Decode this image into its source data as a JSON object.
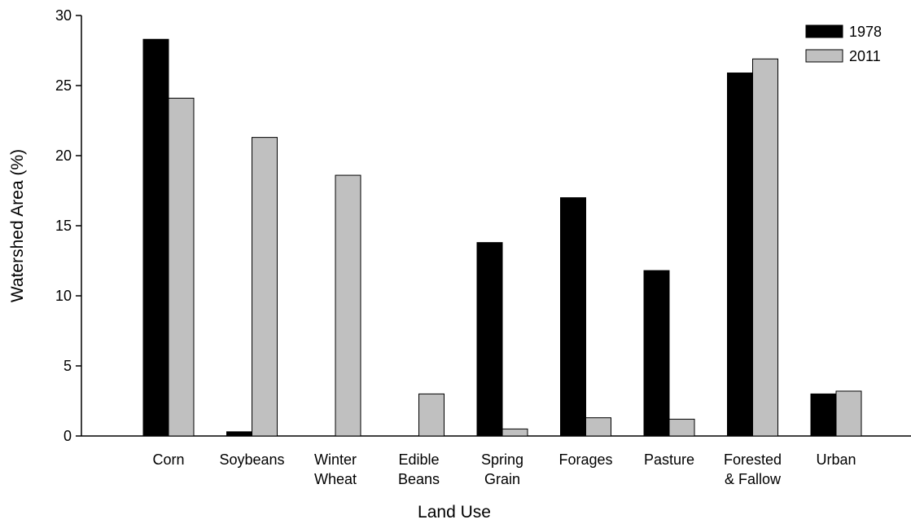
{
  "chart_data": {
    "type": "bar",
    "x_label": "Land Use",
    "y_label": "Watershed Area (%)",
    "categories": [
      "Corn",
      "Soybeans",
      "Winter\nWheat",
      "Edible\nBeans",
      "Spring\nGrain",
      "Forages",
      "Pasture",
      "Forested\n& Fallow",
      "Urban"
    ],
    "series": [
      {
        "name": "1978",
        "color": "#000000",
        "values": [
          28.3,
          0.3,
          0,
          0,
          13.8,
          17.0,
          11.8,
          25.9,
          3.0
        ]
      },
      {
        "name": "2011",
        "color": "#c0c0c0",
        "values": [
          24.1,
          21.3,
          18.6,
          3.0,
          0.5,
          1.3,
          1.2,
          26.9,
          3.2
        ]
      }
    ],
    "ylim": [
      0,
      30
    ],
    "yticks": [
      0,
      5,
      10,
      15,
      20,
      25,
      30
    ],
    "legend": "upper-right"
  }
}
